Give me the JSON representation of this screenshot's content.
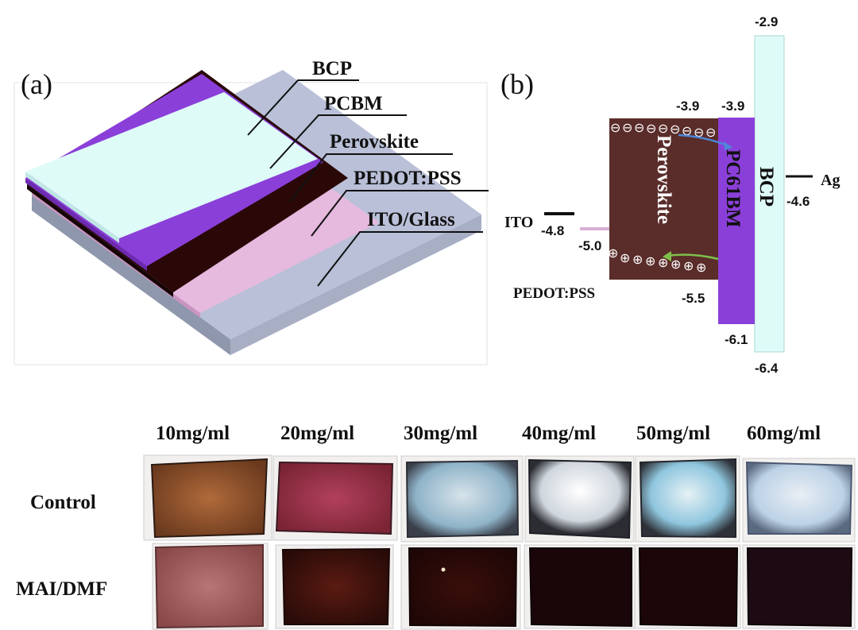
{
  "panel_a": {
    "label": "(a)",
    "layers": [
      {
        "name": "BCP",
        "color": "#dffbf8"
      },
      {
        "name": "PCBM",
        "color": "#8b3fd9"
      },
      {
        "name": "Perovskite",
        "color": "#2a0808"
      },
      {
        "name": "PEDOT:PSS",
        "color": "#e6b9de"
      },
      {
        "name": "ITO/Glass",
        "color": "#b9c0d8"
      }
    ]
  },
  "panel_b": {
    "label": "(b)",
    "perovskite": {
      "name": "Perovskite",
      "cb": "-3.9",
      "vb": "-5.5"
    },
    "pcbm": {
      "name": "PC61BM",
      "lumo": "-3.9",
      "homo": "-6.1"
    },
    "bcp": {
      "name": "BCP",
      "lumo": "-2.9",
      "homo": "-6.4"
    },
    "ito": {
      "name": "ITO",
      "level": "-4.8"
    },
    "pedot": {
      "name": "PEDOT:PSS",
      "level": "-5.0"
    },
    "ag": {
      "name": "Ag",
      "level": "-4.6"
    },
    "electron_symbol": "⊖",
    "hole_symbol": "⊕"
  },
  "photos": {
    "concentrations": [
      "10mg/ml",
      "20mg/ml",
      "30mg/ml",
      "40mg/ml",
      "50mg/ml",
      "60mg/ml"
    ],
    "rows": [
      "Control",
      "MAI/DMF"
    ]
  }
}
